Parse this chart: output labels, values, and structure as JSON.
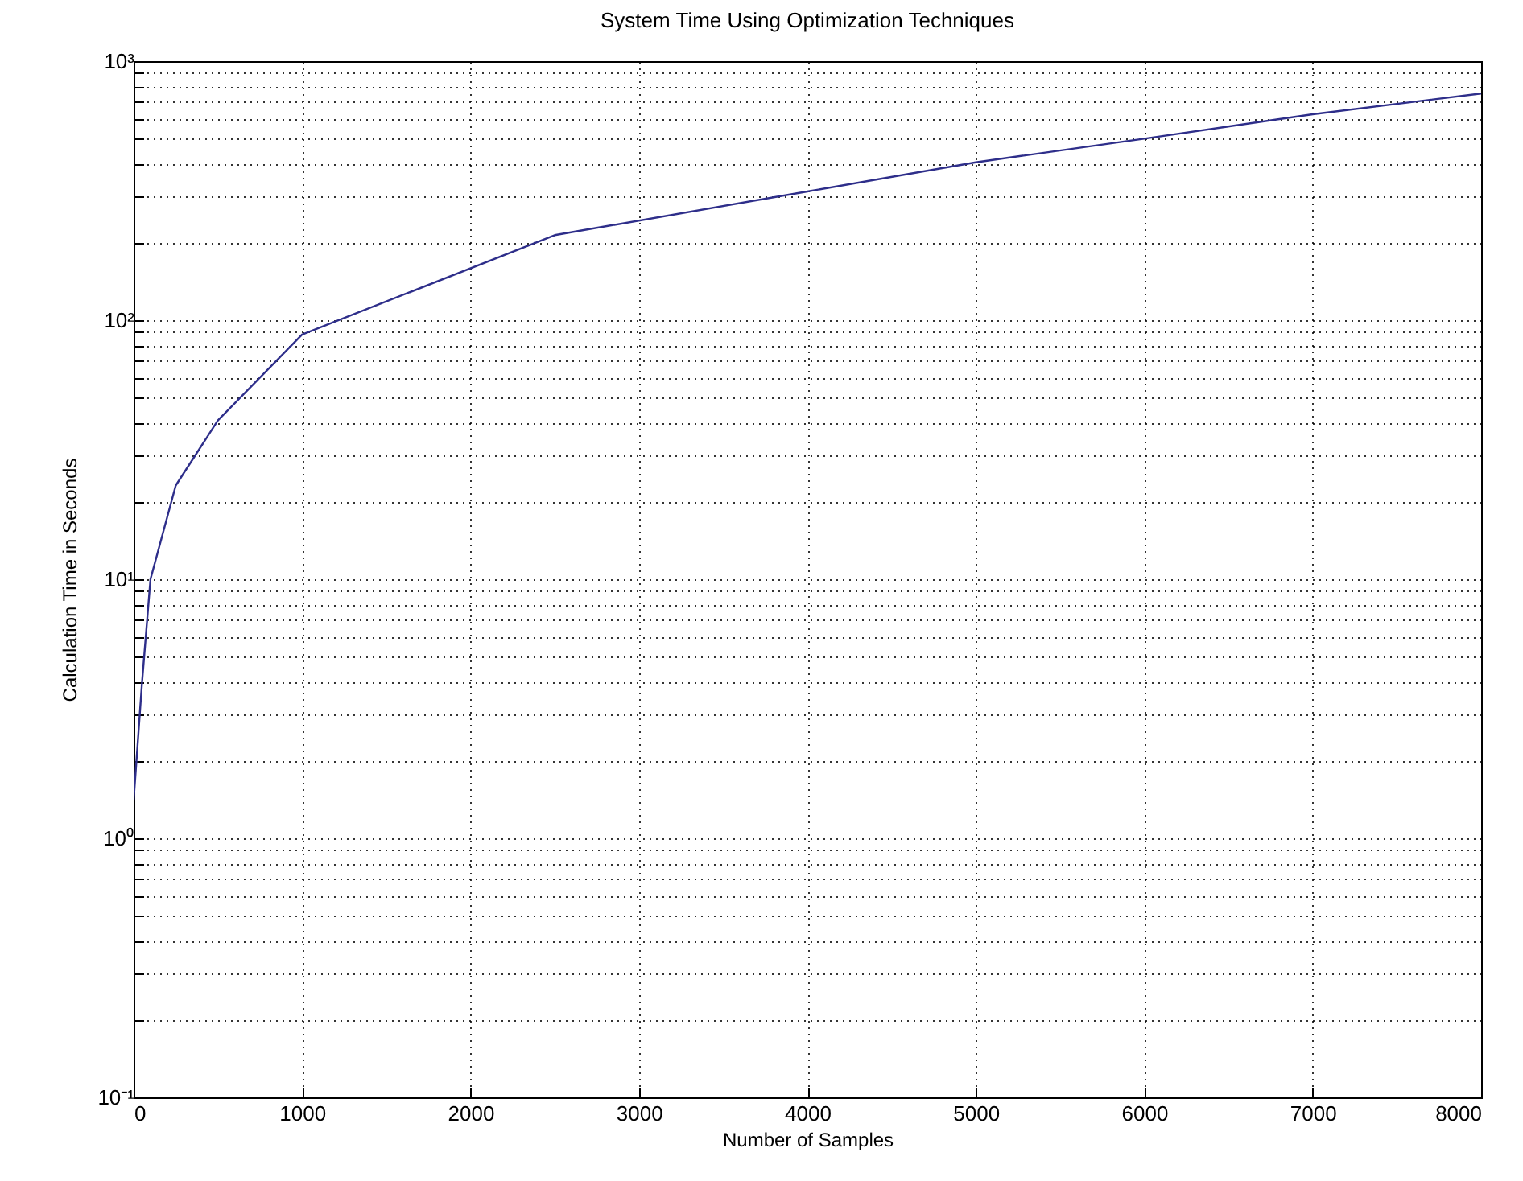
{
  "chart_data": {
    "type": "line",
    "title": "System Time Using Optimization Techniques",
    "xlabel": "Number of Samples",
    "ylabel": "Calculation Time in Seconds",
    "x": [
      0,
      50,
      100,
      250,
      500,
      1000,
      2500,
      4000,
      5000,
      6000,
      7000,
      8000
    ],
    "series": [
      {
        "color": "#2e2e8a",
        "values": [
          1.4,
          4,
          10,
          23,
          41,
          88,
          213,
          314,
          407,
          502,
          624,
          750
        ]
      }
    ],
    "log": true,
    "grid": true,
    "line_style": "solid",
    "xlim": [
      0,
      8000
    ],
    "xticks": [
      0,
      1000,
      2000,
      3000,
      4000,
      5000,
      6000,
      7000,
      8000
    ],
    "ylim": [
      0.1,
      1000
    ],
    "yticks": [
      {
        "value": 0.1,
        "label": "10⁻¹"
      },
      {
        "value": 0.2,
        "label": null
      },
      {
        "value": 0.3,
        "label": null
      },
      {
        "value": 0.4,
        "label": null
      },
      {
        "value": 0.5,
        "label": null
      },
      {
        "value": 0.6,
        "label": null
      },
      {
        "value": 0.7,
        "label": null
      },
      {
        "value": 0.8,
        "label": null
      },
      {
        "value": 0.9,
        "label": null
      },
      {
        "value": 1,
        "label": "10⁰"
      },
      {
        "value": 2,
        "label": null
      },
      {
        "value": 3,
        "label": null
      },
      {
        "value": 4,
        "label": null
      },
      {
        "value": 5,
        "label": null
      },
      {
        "value": 6,
        "label": null
      },
      {
        "value": 7,
        "label": null
      },
      {
        "value": 8,
        "label": null
      },
      {
        "value": 9,
        "label": null
      },
      {
        "value": 10,
        "label": "10¹"
      },
      {
        "value": 20,
        "label": null
      },
      {
        "value": 30,
        "label": null
      },
      {
        "value": 40,
        "label": null
      },
      {
        "value": 50,
        "label": null
      },
      {
        "value": 60,
        "label": null
      },
      {
        "value": 70,
        "label": null
      },
      {
        "value": 80,
        "label": null
      },
      {
        "value": 90,
        "label": null
      },
      {
        "value": 100,
        "label": "10²"
      },
      {
        "value": 200,
        "label": null
      },
      {
        "value": 300,
        "label": null
      },
      {
        "value": 400,
        "label": null
      },
      {
        "value": 500,
        "label": null
      },
      {
        "value": 600,
        "label": null
      },
      {
        "value": 700,
        "label": null
      },
      {
        "value": 800,
        "label": null
      },
      {
        "value": 900,
        "label": null
      },
      {
        "value": 1000,
        "label": "10³"
      }
    ]
  }
}
